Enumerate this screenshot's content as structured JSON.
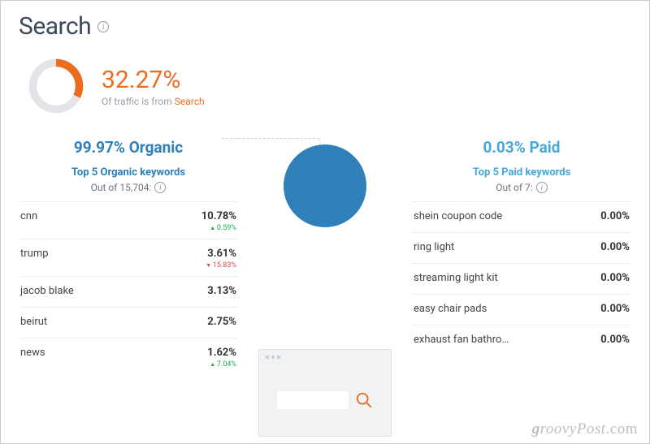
{
  "page": {
    "title": "Search",
    "bg_color": "#ffffff",
    "accent_color": "#ec6b1f"
  },
  "donut": {
    "value": 32.27,
    "fg_color": "#ec6b1f",
    "bg_color": "#e2e4e7",
    "thickness": 10,
    "size": 76
  },
  "traffic": {
    "pct_text": "32.27%",
    "caption_prefix": "Of traffic is from ",
    "caption_hl": "Search"
  },
  "pie": {
    "organic_pct": 99.97,
    "paid_pct": 0.03,
    "organic_color": "#2f7fb8",
    "paid_color": "#49a7d6",
    "size": 102
  },
  "organic": {
    "title": "99.97% Organic",
    "title_color": "#2f7fb8",
    "subtitle": "Top 5 Organic keywords",
    "subtitle_color": "#2f7fb8",
    "out_of": "Out of 15,704:",
    "keywords": [
      {
        "name": "cnn",
        "pct": "10.78%",
        "delta": "0.59%",
        "dir": "up"
      },
      {
        "name": "trump",
        "pct": "3.61%",
        "delta": "15.83%",
        "dir": "down"
      },
      {
        "name": "jacob blake",
        "pct": "3.13%",
        "delta": "",
        "dir": ""
      },
      {
        "name": "beirut",
        "pct": "2.75%",
        "delta": "",
        "dir": ""
      },
      {
        "name": "news",
        "pct": "1.62%",
        "delta": "7.04%",
        "dir": "up"
      }
    ]
  },
  "paid": {
    "title": "0.03% Paid",
    "title_color": "#49a7d6",
    "subtitle": "Top 5 Paid keywords",
    "subtitle_color": "#49a7d6",
    "out_of": "Out of 7:",
    "keywords": [
      {
        "name": "shein coupon code",
        "pct": "0.00%"
      },
      {
        "name": "ring light",
        "pct": "0.00%"
      },
      {
        "name": "streaming light kit",
        "pct": "0.00%"
      },
      {
        "name": "easy chair pads",
        "pct": "0.00%"
      },
      {
        "name": "exhaust fan bathro…",
        "pct": "0.00%"
      }
    ]
  },
  "watermark": "groovyPost.com"
}
